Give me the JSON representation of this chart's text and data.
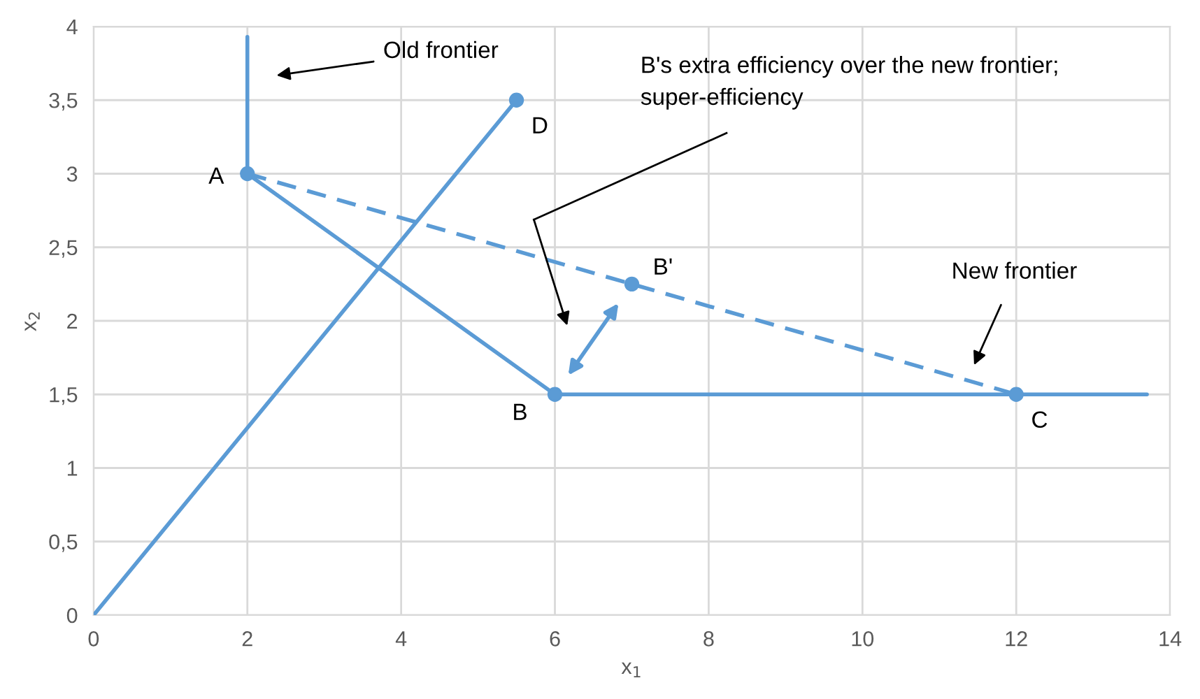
{
  "chart_data": {
    "type": "line",
    "xlabel": "x$_{1}$",
    "ylabel": "x$_{2}$",
    "series": [
      {
        "color": "#5b9bd5",
        "x": [
          2,
          2,
          6,
          13.7
        ],
        "values": [
          3.93,
          3,
          1.5,
          1.5
        ],
        "line_style": "solid",
        "marker": "none"
      },
      {
        "color": "#5b9bd5",
        "x": [
          0,
          5.5
        ],
        "values": [
          0,
          3.5
        ],
        "line_style": "solid",
        "marker": "none"
      },
      {
        "color": "#5b9bd5",
        "x": [
          2,
          12
        ],
        "values": [
          3,
          1.5
        ],
        "line_style": "dashed",
        "marker": "none"
      },
      {
        "type": "scatter",
        "color": "#5b9bd5",
        "x": [
          2,
          6,
          12,
          5.5,
          7
        ],
        "values": [
          3,
          1.5,
          1.5,
          3.5,
          2.25
        ],
        "marker": "circle"
      }
    ],
    "annotations": [
      {
        "text": "A",
        "x": 2,
        "y": 3
      },
      {
        "text": "B",
        "x": 6,
        "y": 1.5
      },
      {
        "text": "C",
        "x": 12,
        "y": 1.5
      },
      {
        "text": "D",
        "x": 5.5,
        "y": 3.5
      },
      {
        "text": "B'",
        "x": 7,
        "y": 2.25
      },
      "Old frontier",
      "New frontier",
      "B's extra efficiency over the new frontier;\nsuper-efficiency"
    ],
    "xlim": [
      0,
      14
    ],
    "xticks": [
      0,
      2,
      4,
      6,
      8,
      10,
      12,
      14
    ],
    "ylim": [
      0,
      4
    ],
    "yticks": [
      0,
      {
        "value": 0.5,
        "label": "0,5"
      },
      1,
      {
        "value": 1.5,
        "label": "1,5"
      },
      2,
      {
        "value": 2.5,
        "label": "2,5"
      },
      3,
      {
        "value": 3.5,
        "label": "3,5"
      },
      4
    ],
    "grid": true,
    "legend": false
  }
}
